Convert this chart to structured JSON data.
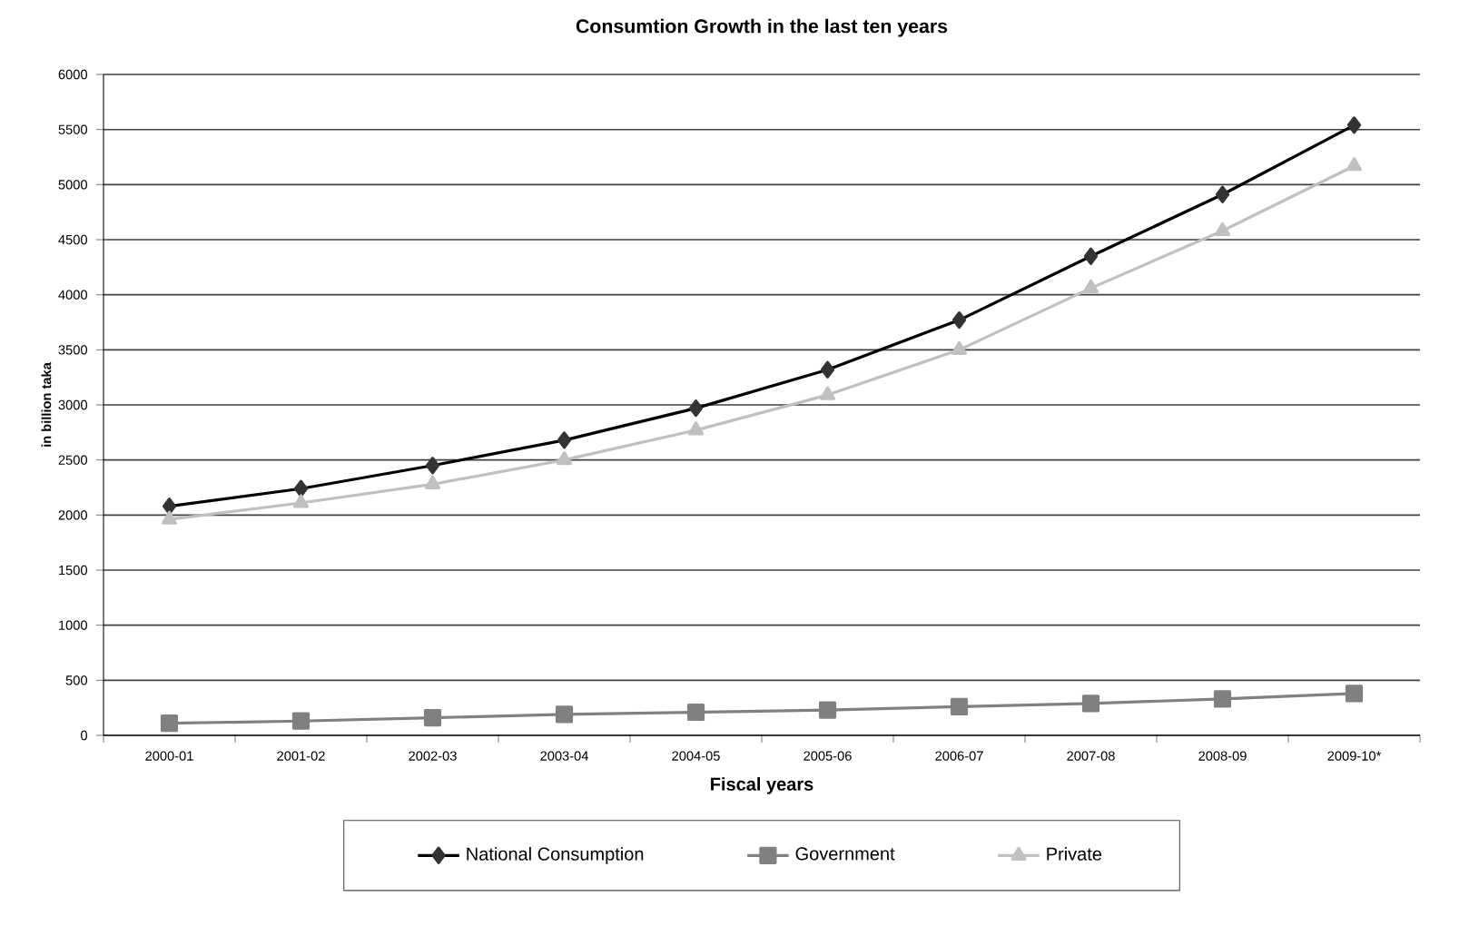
{
  "chart_data": {
    "type": "line",
    "title": "Consumtion Growth in the last ten years",
    "xlabel": "Fiscal years",
    "ylabel": "in billion taka",
    "categories": [
      "2000-01",
      "2001-02",
      "2002-03",
      "2003-04",
      "2004-05",
      "2005-06",
      "2006-07",
      "2007-08",
      "2008-09",
      "2009-10*"
    ],
    "series": [
      {
        "name": "National Consumption",
        "color": "#000000",
        "marker": "diamond",
        "values": [
          2080,
          2240,
          2450,
          2680,
          2970,
          3320,
          3770,
          4350,
          4910,
          5540
        ]
      },
      {
        "name": "Government",
        "color": "#808080",
        "marker": "square",
        "values": [
          110,
          130,
          160,
          190,
          210,
          230,
          260,
          290,
          330,
          380
        ]
      },
      {
        "name": "Private",
        "color": "#c0c0c0",
        "marker": "triangle",
        "values": [
          1960,
          2110,
          2280,
          2500,
          2770,
          3090,
          3500,
          4060,
          4580,
          5170
        ]
      }
    ],
    "ylim": [
      0,
      6000
    ],
    "yticks": [
      0,
      500,
      1000,
      1500,
      2000,
      2500,
      3000,
      3500,
      4000,
      4500,
      5000,
      5500,
      6000
    ],
    "grid": "y",
    "legend": "bottom",
    "line_style": "solid"
  }
}
